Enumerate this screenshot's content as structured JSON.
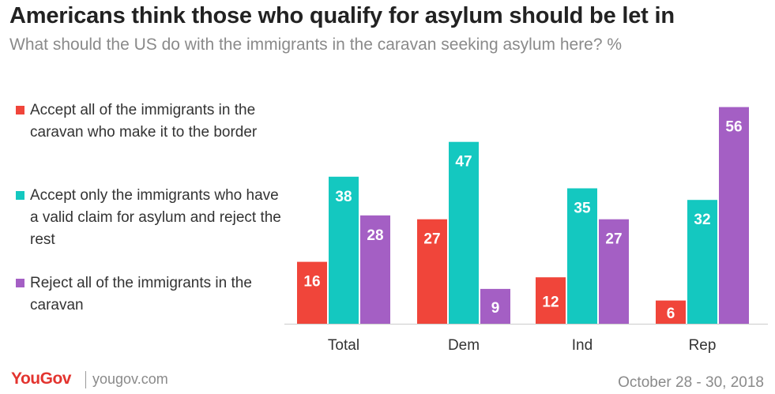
{
  "title": "Americans think those who qualify for asylum should be let in",
  "subtitle": "What should the US do with the immigrants in the caravan seeking asylum here? %",
  "colors": {
    "accept_all": "#f0453a",
    "accept_valid": "#14c8c0",
    "reject_all": "#a45fc4",
    "axis": "#cccccc"
  },
  "chart_data": {
    "type": "bar",
    "title": "Americans think those who qualify for asylum should be let in",
    "subtitle": "What should the US do with the immigrants in the caravan seeking asylum here? %",
    "categories": [
      "Total",
      "Dem",
      "Ind",
      "Rep"
    ],
    "series": [
      {
        "name": "Accept all of the immigrants in the caravan who make it to the border",
        "color": "#f0453a",
        "values": [
          16,
          27,
          12,
          6
        ]
      },
      {
        "name": "Accept only the immigrants who have a valid claim for asylum and reject the rest",
        "color": "#14c8c0",
        "values": [
          38,
          47,
          35,
          32
        ]
      },
      {
        "name": "Reject all of the immigrants in the caravan",
        "color": "#a45fc4",
        "values": [
          28,
          9,
          27,
          56
        ]
      }
    ],
    "ylim": [
      0,
      60
    ],
    "grid": false,
    "legend": "left",
    "data_labels": true
  },
  "footer": {
    "logo": "YouGov",
    "site": "yougov.com",
    "date": "October 28 - 30, 2018"
  }
}
